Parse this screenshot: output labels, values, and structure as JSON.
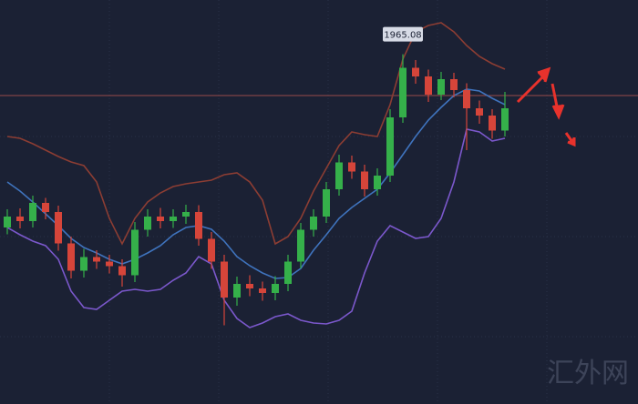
{
  "chart_data": {
    "type": "candlestick",
    "ylim": [
      1888.2,
      1977
    ],
    "up_color": "#35b04a",
    "down_color": "#d6453a",
    "open": [
      1927.0,
      1929.4,
      1928.4,
      1932.4,
      1930.4,
      1923.5,
      1917.5,
      1920.5,
      1919.5,
      1918.5,
      1916.5,
      1926.5,
      1929.4,
      1928.4,
      1929.4,
      1930.4,
      1924.5,
      1919.5,
      1911.6,
      1914.6,
      1913.6,
      1912.6,
      1914.6,
      1919.5,
      1926.5,
      1929.4,
      1935.4,
      1941.3,
      1939.3,
      1935.4,
      1938.4,
      1951.2,
      1962.1,
      1960.2,
      1956.2,
      1959.6,
      1957.2,
      1953.2,
      1951.6,
      1948.3
    ],
    "high": [
      1931.0,
      1931.2,
      1934.0,
      1933.5,
      1931.8,
      1925.0,
      1922.3,
      1922.0,
      1921.0,
      1920.0,
      1928.2,
      1931.0,
      1931.3,
      1931.0,
      1932.0,
      1931.9,
      1926.0,
      1921.0,
      1916.2,
      1916.5,
      1915.1,
      1916.3,
      1921.0,
      1928.0,
      1931.0,
      1937.0,
      1943.0,
      1942.8,
      1940.8,
      1940.0,
      1953.0,
      1965.08,
      1963.8,
      1961.7,
      1961.2,
      1961.0,
      1958.7,
      1954.9,
      1953.0,
      1956.8
    ],
    "low": [
      1925.5,
      1926.8,
      1927.0,
      1928.8,
      1921.9,
      1915.8,
      1916.0,
      1917.9,
      1916.9,
      1914.0,
      1915.0,
      1925.0,
      1926.8,
      1926.9,
      1927.8,
      1923.0,
      1917.9,
      1905.5,
      1909.8,
      1911.9,
      1910.9,
      1911.0,
      1913.0,
      1918.0,
      1925.0,
      1928.0,
      1934.0,
      1937.7,
      1933.8,
      1934.0,
      1937.0,
      1950.0,
      1958.6,
      1954.6,
      1955.0,
      1955.6,
      1944.0,
      1949.8,
      1946.5,
      1947.0
    ],
    "close": [
      1929.4,
      1928.4,
      1932.4,
      1930.4,
      1923.5,
      1917.5,
      1920.5,
      1919.5,
      1918.5,
      1916.5,
      1926.5,
      1929.4,
      1928.4,
      1929.4,
      1930.4,
      1924.5,
      1919.5,
      1911.6,
      1914.6,
      1913.6,
      1912.6,
      1914.6,
      1919.5,
      1926.5,
      1929.4,
      1935.4,
      1941.3,
      1939.3,
      1935.4,
      1938.4,
      1951.2,
      1962.1,
      1960.2,
      1956.2,
      1959.6,
      1957.2,
      1953.2,
      1951.6,
      1948.3,
      1953.2
    ],
    "series": [
      {
        "color": "#8c3d33",
        "values": [
          1947,
          1946.6,
          1945.4,
          1944,
          1942.6,
          1941.4,
          1940.6,
          1937,
          1929,
          1923.4,
          1929,
          1932.6,
          1934.6,
          1936,
          1936.6,
          1937,
          1937.4,
          1938.6,
          1939,
          1937,
          1933,
          1923.4,
          1925,
          1929,
          1935,
          1940,
          1945,
          1948,
          1947.4,
          1947,
          1954,
          1964,
          1970,
          1971.4,
          1972,
          1970,
          1967,
          1964.6,
          1963,
          1961.8
        ]
      },
      {
        "color": "#3f73bd",
        "values": [
          1937,
          1935,
          1932.6,
          1930,
          1927.4,
          1924.6,
          1922.6,
          1921.4,
          1920,
          1919,
          1920,
          1921.4,
          1923,
          1925.4,
          1927,
          1927.4,
          1926.6,
          1924,
          1920.6,
          1918.6,
          1917,
          1915.8,
          1916,
          1918,
          1922,
          1925.4,
          1929,
          1931.4,
          1933.4,
          1935.4,
          1939,
          1943,
          1947,
          1950.6,
          1953.4,
          1956,
          1957.4,
          1957,
          1955.4,
          1954
        ]
      },
      {
        "color": "#7b58cc",
        "values": [
          1927,
          1925.4,
          1924,
          1923,
          1920,
          1913,
          1909.4,
          1909,
          1911,
          1913,
          1913.4,
          1913,
          1913.4,
          1915.4,
          1917,
          1920.6,
          1919,
          1911,
          1907,
          1905,
          1906,
          1907.4,
          1908,
          1906.6,
          1906,
          1905.8,
          1906.6,
          1908.6,
          1917,
          1924,
          1927.4,
          1926,
          1924.6,
          1925,
          1929,
          1937,
          1948.6,
          1948,
          1946,
          1946.6
        ]
      }
    ],
    "hline": 1956,
    "hline_color": "#9a4a4a",
    "peak_label": 1965.08,
    "watermark": "汇外网"
  }
}
